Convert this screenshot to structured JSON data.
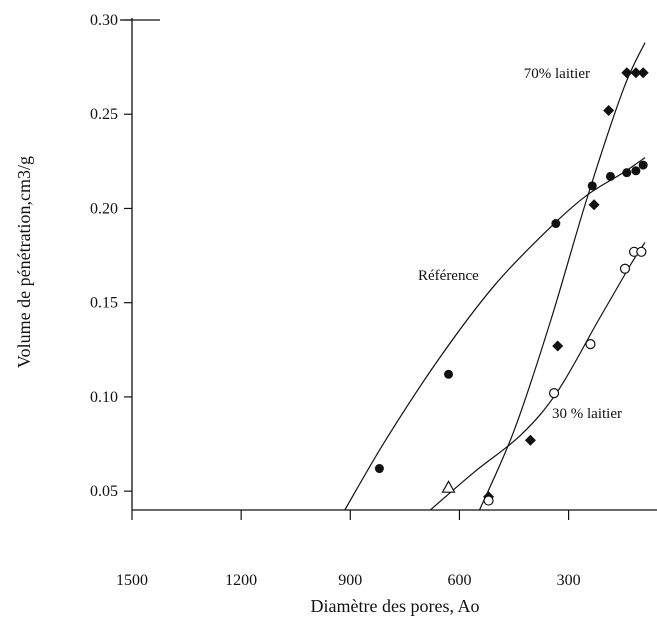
{
  "chart_data": {
    "type": "scatter",
    "title": "",
    "xlabel": "Diamètre des pores, Ao",
    "ylabel": "Volume de pénétration,cm3/g",
    "xlim": [
      1500,
      90
    ],
    "ylim": [
      0.04,
      0.3
    ],
    "x_ticks": [
      1500,
      1200,
      900,
      600,
      300
    ],
    "y_ticks": [
      "0.05",
      "0.10",
      "0.15",
      "0.20",
      "0.25",
      "0.30"
    ],
    "grid": false,
    "series": [
      {
        "name": "Référence",
        "marker": "filled-circle",
        "points": [
          [
            820,
            0.062
          ],
          [
            630,
            0.112
          ],
          [
            335,
            0.192
          ],
          [
            235,
            0.212
          ],
          [
            185,
            0.217
          ],
          [
            140,
            0.219
          ],
          [
            115,
            0.22
          ],
          [
            95,
            0.223
          ]
        ],
        "curve": [
          [
            915,
            0.04
          ],
          [
            800,
            0.078
          ],
          [
            650,
            0.122
          ],
          [
            500,
            0.16
          ],
          [
            350,
            0.19
          ],
          [
            250,
            0.207
          ],
          [
            150,
            0.219
          ],
          [
            90,
            0.227
          ]
        ]
      },
      {
        "name": "70% laitier",
        "marker": "filled-diamond",
        "points": [
          [
            520,
            0.047
          ],
          [
            405,
            0.077
          ],
          [
            330,
            0.127
          ],
          [
            230,
            0.202
          ],
          [
            190,
            0.252
          ],
          [
            140,
            0.272
          ],
          [
            115,
            0.272
          ],
          [
            95,
            0.272
          ]
        ],
        "curve": [
          [
            545,
            0.04
          ],
          [
            450,
            0.082
          ],
          [
            350,
            0.14
          ],
          [
            250,
            0.205
          ],
          [
            150,
            0.263
          ],
          [
            90,
            0.288
          ]
        ]
      },
      {
        "name": "30 % laitier",
        "marker": "open-circle",
        "points": [
          [
            520,
            0.045
          ],
          [
            340,
            0.102
          ],
          [
            240,
            0.128
          ],
          [
            145,
            0.168
          ],
          [
            120,
            0.177
          ],
          [
            100,
            0.177
          ]
        ],
        "curve": [
          [
            680,
            0.04
          ],
          [
            560,
            0.06
          ],
          [
            430,
            0.08
          ],
          [
            330,
            0.103
          ],
          [
            220,
            0.14
          ],
          [
            130,
            0.17
          ],
          [
            90,
            0.182
          ]
        ]
      },
      {
        "name": "",
        "marker": "open-triangle",
        "points": [
          [
            630,
            0.052
          ]
        ]
      }
    ]
  }
}
